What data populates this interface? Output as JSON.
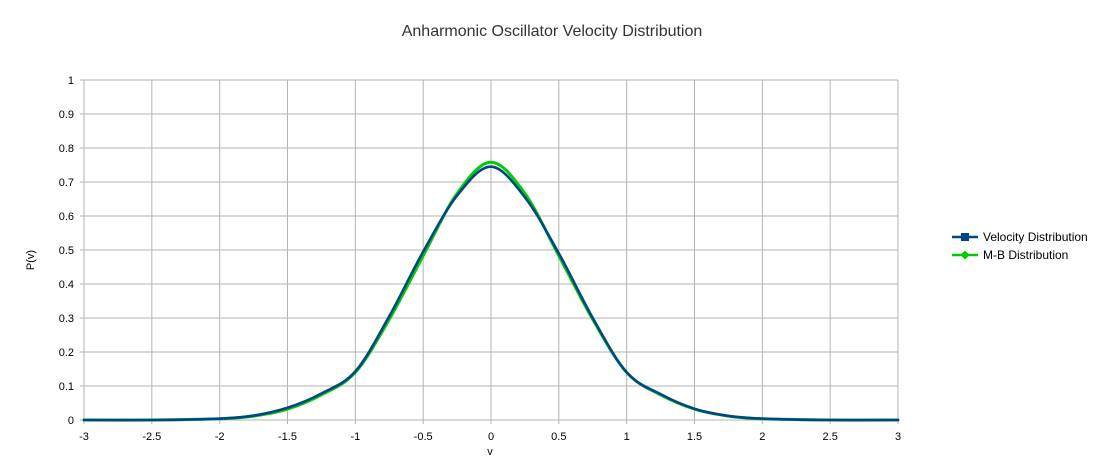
{
  "chart_data": {
    "type": "line",
    "title": "Anharmonic Oscillator Velocity Distribution",
    "xlabel": "v",
    "ylabel": "P(v)",
    "xlim": [
      -3,
      3
    ],
    "ylim": [
      0,
      1
    ],
    "x_ticks": [
      "-3",
      "-2.5",
      "-2",
      "-1.5",
      "-1",
      "-0.5",
      "0",
      "0.5",
      "1",
      "1.5",
      "2",
      "2.5",
      "3"
    ],
    "y_ticks": [
      "0",
      "0.1",
      "0.2",
      "0.3",
      "0.4",
      "0.5",
      "0.6",
      "0.7",
      "0.8",
      "0.9",
      "1"
    ],
    "grid": true,
    "legend_position": "right",
    "x": [
      -3,
      -2.5,
      -2,
      -1.75,
      -1.5,
      -1.25,
      -1,
      -0.75,
      -0.5,
      -0.25,
      0,
      0.25,
      0.5,
      0.75,
      1,
      1.25,
      1.5,
      1.75,
      2,
      2.5,
      3
    ],
    "series": [
      {
        "name": "Velocity Distribution",
        "color": "#004586",
        "marker": "square",
        "values": [
          0.0,
          0.0,
          0.004,
          0.013,
          0.036,
          0.078,
          0.143,
          0.305,
          0.495,
          0.66,
          0.745,
          0.655,
          0.49,
          0.3,
          0.14,
          0.076,
          0.033,
          0.012,
          0.004,
          0.0,
          0.0
        ]
      },
      {
        "name": "M-B Distribution",
        "color": "#00cc00",
        "marker": "diamond",
        "values": [
          0.0,
          0.0,
          0.0035,
          0.0115,
          0.032,
          0.074,
          0.14,
          0.296,
          0.483,
          0.666,
          0.758,
          0.666,
          0.483,
          0.296,
          0.14,
          0.074,
          0.032,
          0.0115,
          0.0035,
          0.0,
          0.0
        ]
      }
    ]
  }
}
